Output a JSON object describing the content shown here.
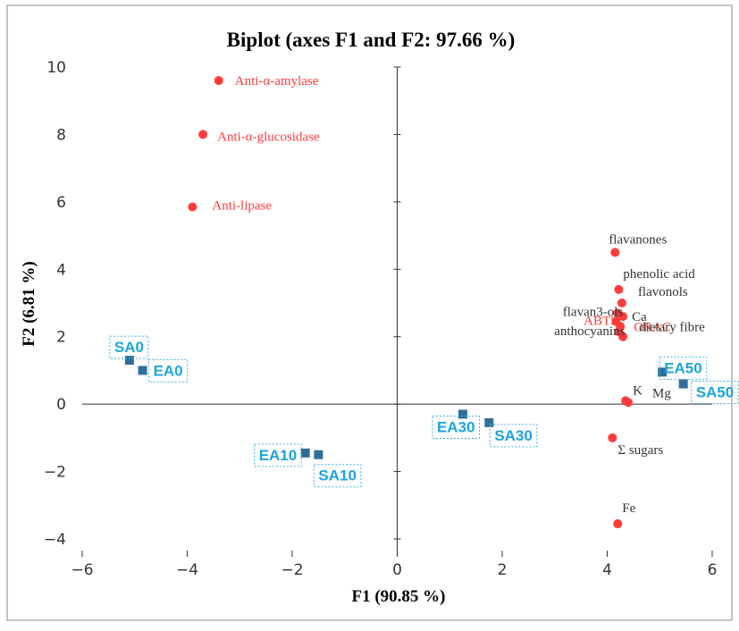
{
  "chart_data": {
    "type": "scatter",
    "title": "Biplot (axes F1 and F2: 97.66 %)",
    "xlabel": "F1 (90.85 %)",
    "ylabel": "F2 (6.81 %)",
    "xlim": [
      -6,
      6
    ],
    "ylim": [
      -4,
      10
    ],
    "xticks": [
      -6,
      -4,
      -2,
      0,
      2,
      4,
      6
    ],
    "yticks": [
      -4,
      -2,
      0,
      2,
      4,
      6,
      8,
      10
    ],
    "xtick_labels": [
      "−6",
      "−4",
      "−2",
      "0",
      "2",
      "4",
      "6"
    ],
    "ytick_labels": [
      "−4",
      "−2",
      "0",
      "2",
      "4",
      "6",
      "8",
      "10"
    ],
    "grid": false,
    "series": [
      {
        "name": "variables",
        "marker": "circle",
        "color": "#ff3b3b",
        "points": [
          {
            "label": "Anti-α-amylase",
            "x": -3.4,
            "y": 9.6,
            "label_color": "#ff3b3b"
          },
          {
            "label": "Anti-α-glucosidase",
            "x": -3.7,
            "y": 8.0,
            "label_color": "#ff3b3b"
          },
          {
            "label": "Anti-lipase",
            "x": -3.9,
            "y": 5.85,
            "label_color": "#ff3b3b"
          },
          {
            "label": "flavanones",
            "x": 4.15,
            "y": 4.5,
            "label_color": "#333333"
          },
          {
            "label": "phenolic acid",
            "x": 4.22,
            "y": 3.4,
            "label_color": "#333333"
          },
          {
            "label": "flavonols",
            "x": 4.28,
            "y": 3.0,
            "label_color": "#333333"
          },
          {
            "label": "flavan3-ols",
            "x": 4.2,
            "y": 2.7,
            "label_color": "#333333"
          },
          {
            "label": "ABTS",
            "x": 4.17,
            "y": 2.45,
            "label_color": "#ff3b3b"
          },
          {
            "label": "Ca",
            "x": 4.3,
            "y": 2.6,
            "label_color": "#333333"
          },
          {
            "label": "ORAC",
            "x": 4.25,
            "y": 2.3,
            "label_color": "#ff3b3b"
          },
          {
            "label": "anthocyanins",
            "x": 4.22,
            "y": 2.15,
            "label_color": "#333333"
          },
          {
            "label": "dietary fibre",
            "x": 4.3,
            "y": 2.0,
            "label_color": "#333333"
          },
          {
            "label": "K",
            "x": 4.35,
            "y": 0.1,
            "label_color": "#333333"
          },
          {
            "label": "Mg",
            "x": 4.4,
            "y": 0.05,
            "label_color": "#333333"
          },
          {
            "label": "Σ sugars",
            "x": 4.1,
            "y": -1.0,
            "label_color": "#333333"
          },
          {
            "label": "Fe",
            "x": 4.2,
            "y": -3.55,
            "label_color": "#333333"
          }
        ]
      },
      {
        "name": "observations",
        "marker": "square",
        "color": "#2e6f99",
        "label_color": "#1ba3e0",
        "points": [
          {
            "label": "SA0",
            "x": -5.1,
            "y": 1.3
          },
          {
            "label": "EA0",
            "x": -4.85,
            "y": 1.0
          },
          {
            "label": "EA10",
            "x": -1.75,
            "y": -1.45
          },
          {
            "label": "SA10",
            "x": -1.5,
            "y": -1.5
          },
          {
            "label": "EA30",
            "x": 1.25,
            "y": -0.3
          },
          {
            "label": "SA30",
            "x": 1.75,
            "y": -0.55
          },
          {
            "label": "EA50",
            "x": 5.05,
            "y": 0.95
          },
          {
            "label": "SA50",
            "x": 5.45,
            "y": 0.6
          }
        ]
      }
    ]
  }
}
